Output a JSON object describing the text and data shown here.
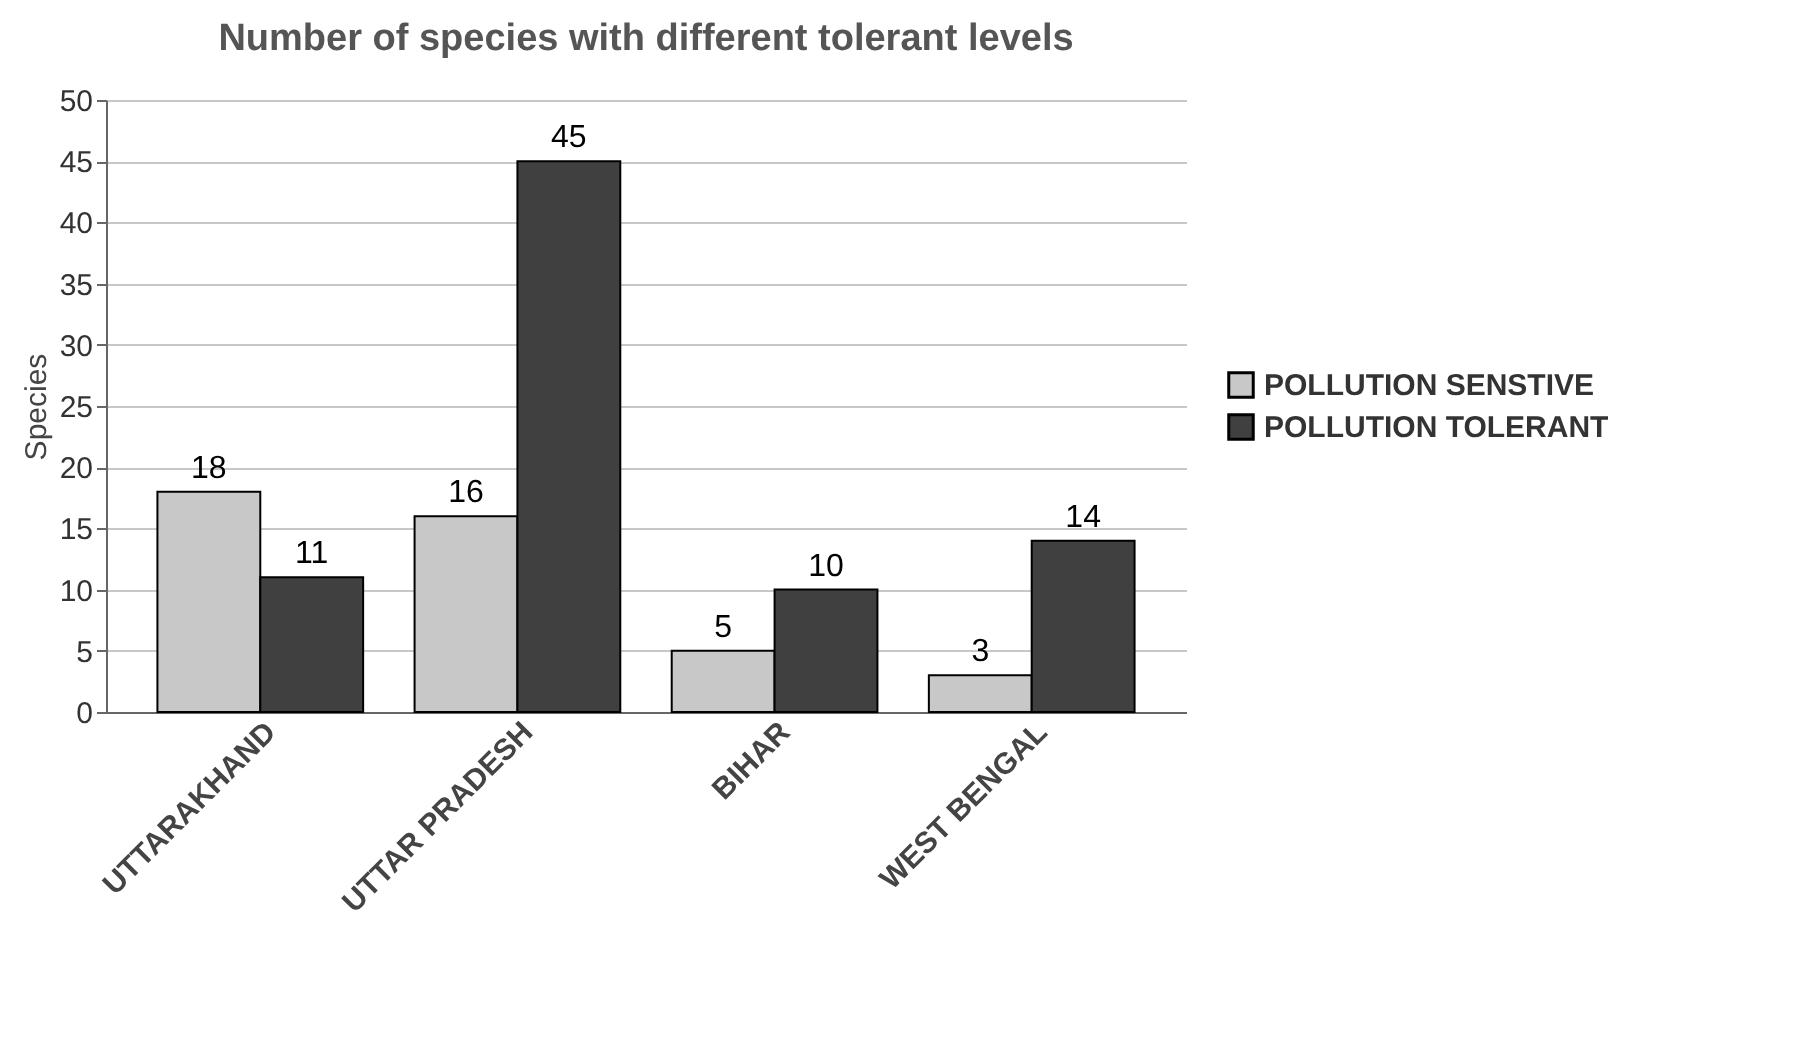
{
  "chart_data": {
    "type": "bar",
    "title": "Number of species with different tolerant levels",
    "ylabel": "Species",
    "categories": [
      "UTTARAKHAND",
      "UTTAR PRADESH",
      "BIHAR",
      "WEST BENGAL"
    ],
    "series": [
      {
        "name": "POLLUTION SENSTIVE",
        "color": "#c8c8c8",
        "values": [
          18,
          16,
          5,
          3
        ]
      },
      {
        "name": "POLLUTION TOLERANT",
        "color": "#404040",
        "values": [
          11,
          45,
          10,
          14
        ]
      }
    ],
    "ylim": [
      0,
      50
    ],
    "yticks": [
      0,
      5,
      10,
      15,
      20,
      25,
      30,
      35,
      40,
      45,
      50
    ],
    "grid": "y",
    "legend": "right",
    "data_labels": true
  }
}
